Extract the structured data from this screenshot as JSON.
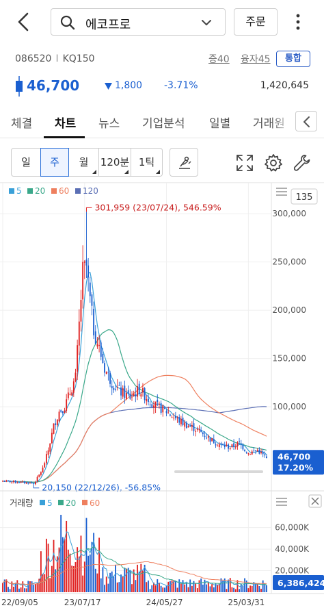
{
  "search": {
    "value": "에코프로"
  },
  "order_button": "주문",
  "stock": {
    "code": "086520",
    "market": "KQ150",
    "separator": "I",
    "margin_rate": "증40",
    "loan_rate": "융자45",
    "integrated": "통합",
    "price": "46,700",
    "change": "1,800",
    "change_direction": "down",
    "change_pct": "-3.71%",
    "volume": "1,420,645"
  },
  "tabs": [
    "체결",
    "차트",
    "뉴스",
    "기업분석",
    "일별",
    "거래원"
  ],
  "active_tab": "차트",
  "period_buttons": [
    "일",
    "주",
    "월",
    "120분",
    "1틱"
  ],
  "active_period": "주",
  "colors": {
    "up": "#e02020",
    "down": "#1a5fd0",
    "ma5": "#3aa0d8",
    "ma20": "#3aa88a",
    "ma60": "#ee7f5e",
    "ma120": "#5b6fb5"
  },
  "icons": {
    "back": "chevron-left-icon",
    "search": "search-icon",
    "dropdown": "chevron-down-icon",
    "more": "kebab-icon",
    "tab_prev": "chevron-left-icon",
    "draw": "drawing-tool-icon",
    "expand": "expand-icon",
    "settings": "gear-icon",
    "tools": "wrench-icon"
  },
  "chart_data": {
    "type": "candlestick",
    "price_pane": {
      "legend": [
        {
          "label": "5",
          "color": "#3aa0d8"
        },
        {
          "label": "20",
          "color": "#3aa88a"
        },
        {
          "label": "60",
          "color": "#ee7f5e"
        },
        {
          "label": "120",
          "color": "#5b6fb5"
        }
      ],
      "y_ticks": [
        300000,
        250000,
        200000,
        150000,
        100000
      ],
      "y_tick_labels": [
        "300,000",
        "250,000",
        "200,000",
        "150,000",
        "100,000"
      ],
      "ylim": [
        10000,
        315000
      ],
      "x_labels": [
        "22/09/05",
        "23/07/17",
        "24/05/27",
        "25/03/31"
      ],
      "x_label_week_index": [
        0,
        45,
        90,
        135
      ],
      "total_weeks": 146,
      "visible_count": "135",
      "high_annotation": "301,959 (23/07/24), 546.59%",
      "low_annotation": "20,150 (22/12/26), -56.85%",
      "current_price_label": "46,700",
      "current_pct_label": "17.20%",
      "keypoints_week_close": [
        [
          0,
          23000
        ],
        [
          8,
          22000
        ],
        [
          16,
          21000
        ],
        [
          17,
          20150
        ],
        [
          19,
          26000
        ],
        [
          22,
          36000
        ],
        [
          25,
          55000
        ],
        [
          28,
          80000
        ],
        [
          31,
          95000
        ],
        [
          34,
          100000
        ],
        [
          37,
          115000
        ],
        [
          40,
          130000
        ],
        [
          42,
          185000
        ],
        [
          44,
          240000
        ],
        [
          46,
          245000
        ],
        [
          48,
          210000
        ],
        [
          50,
          180000
        ],
        [
          53,
          160000
        ],
        [
          56,
          140000
        ],
        [
          60,
          125000
        ],
        [
          65,
          115000
        ],
        [
          70,
          110000
        ],
        [
          75,
          118000
        ],
        [
          80,
          108000
        ],
        [
          85,
          100000
        ],
        [
          90,
          95000
        ],
        [
          95,
          88000
        ],
        [
          100,
          82000
        ],
        [
          105,
          78000
        ],
        [
          110,
          72000
        ],
        [
          115,
          65000
        ],
        [
          120,
          60000
        ],
        [
          125,
          58000
        ],
        [
          130,
          62000
        ],
        [
          135,
          52000
        ],
        [
          140,
          55000
        ],
        [
          144,
          48500
        ],
        [
          145,
          46700
        ]
      ]
    },
    "volume_pane": {
      "title": "거래량",
      "legend": [
        {
          "label": "5",
          "color": "#3aa0d8"
        },
        {
          "label": "20",
          "color": "#3aa88a"
        },
        {
          "label": "60",
          "color": "#ee7f5e"
        }
      ],
      "y_ticks": [
        60000000,
        40000000,
        20000000
      ],
      "y_tick_labels": [
        "60,000K",
        "40,000K",
        "20,000K"
      ],
      "ylim": [
        0,
        75000000
      ],
      "current_volume_label": "6,386,424"
    }
  }
}
